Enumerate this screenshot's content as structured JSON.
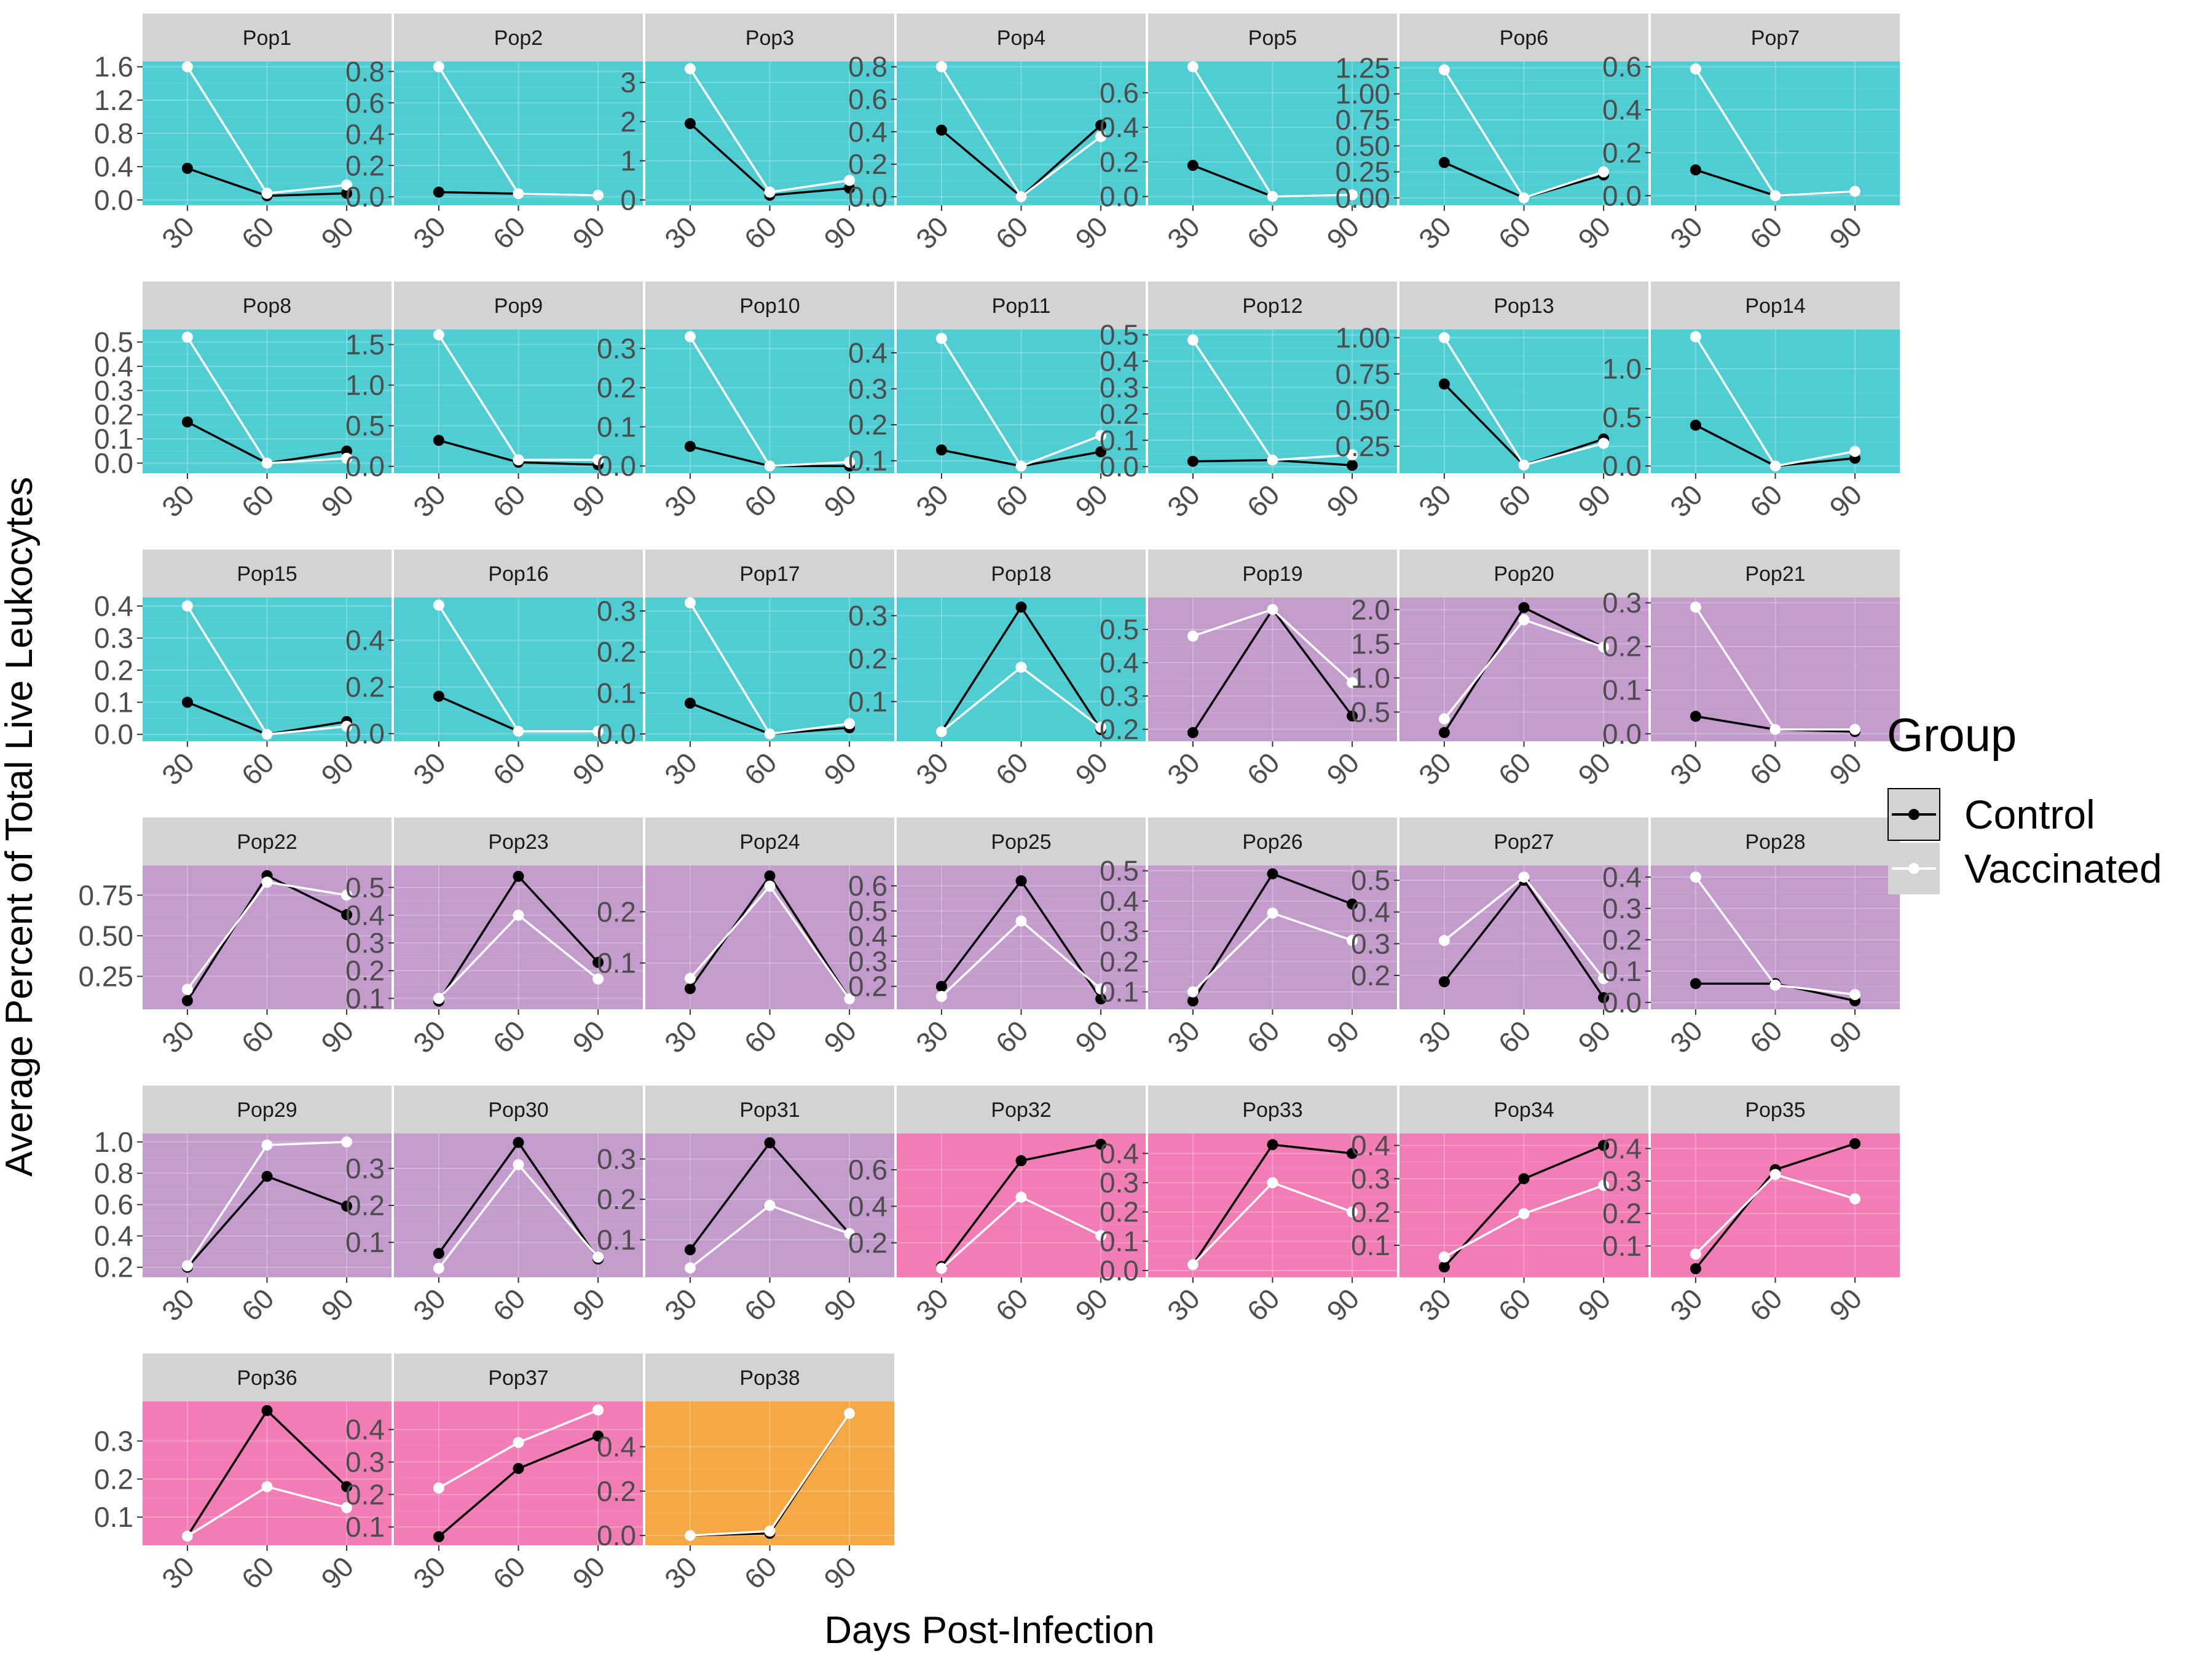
{
  "chart_data": {
    "type": "line",
    "ylabel": "Average Percent of Total Live Leukocytes",
    "xlabel": "Days Post-Infection",
    "x": [
      "30",
      "60",
      "90"
    ],
    "legend": {
      "title": "Group",
      "position": "right",
      "entries": [
        {
          "name": "Control",
          "color": "#000000"
        },
        {
          "name": "Vaccinated",
          "color": "#ffffff"
        }
      ]
    },
    "colors": {
      "cyan": "#4ecdd3",
      "purple": "#c39ccd",
      "pink": "#f27db4",
      "orange": "#f6a844",
      "strip": "#d3d3d3",
      "control": "#000000",
      "vaccinated": "#ffffff"
    },
    "panels": [
      {
        "name": "Pop1",
        "bg": "cyan",
        "ylim": [
          0,
          1.6
        ],
        "ticks": [
          "0.0",
          "0.4",
          "0.8",
          "1.2",
          "1.6"
        ],
        "tickv": [
          0,
          0.4,
          0.8,
          1.2,
          1.6
        ],
        "control": [
          0.38,
          0.05,
          0.08
        ],
        "vaccinated": [
          1.6,
          0.08,
          0.18
        ]
      },
      {
        "name": "Pop2",
        "bg": "cyan",
        "ylim": [
          -0.02,
          0.83
        ],
        "ticks": [
          "0.0",
          "0.2",
          "0.4",
          "0.6",
          "0.8"
        ],
        "tickv": [
          0,
          0.2,
          0.4,
          0.6,
          0.8
        ],
        "control": [
          0.03,
          0.02,
          0.01
        ],
        "vaccinated": [
          0.83,
          0.02,
          0.01
        ]
      },
      {
        "name": "Pop3",
        "bg": "cyan",
        "ylim": [
          0,
          3.4
        ],
        "ticks": [
          "0",
          "1",
          "2",
          "3"
        ],
        "tickv": [
          0,
          1,
          2,
          3
        ],
        "control": [
          1.95,
          0.12,
          0.3
        ],
        "vaccinated": [
          3.35,
          0.2,
          0.5
        ]
      },
      {
        "name": "Pop4",
        "bg": "cyan",
        "ylim": [
          -0.02,
          0.8
        ],
        "ticks": [
          "0.0",
          "0.2",
          "0.4",
          "0.6",
          "0.8"
        ],
        "tickv": [
          0,
          0.2,
          0.4,
          0.6,
          0.8
        ],
        "control": [
          0.41,
          0.0,
          0.44
        ],
        "vaccinated": [
          0.8,
          0.0,
          0.37
        ]
      },
      {
        "name": "Pop5",
        "bg": "cyan",
        "ylim": [
          -0.02,
          0.75
        ],
        "ticks": [
          "0.0",
          "0.2",
          "0.4",
          "0.6"
        ],
        "tickv": [
          0,
          0.2,
          0.4,
          0.6
        ],
        "control": [
          0.18,
          0.0,
          0.01
        ],
        "vaccinated": [
          0.75,
          0.0,
          0.01
        ]
      },
      {
        "name": "Pop6",
        "bg": "cyan",
        "ylim": [
          -0.02,
          1.26
        ],
        "ticks": [
          "0.00",
          "0.25",
          "0.50",
          "0.75",
          "1.00",
          "1.25"
        ],
        "tickv": [
          0,
          0.25,
          0.5,
          0.75,
          1.0,
          1.25
        ],
        "control": [
          0.34,
          0.0,
          0.22
        ],
        "vaccinated": [
          1.23,
          0.0,
          0.25
        ]
      },
      {
        "name": "Pop7",
        "bg": "cyan",
        "ylim": [
          -0.02,
          0.6
        ],
        "ticks": [
          "0.0",
          "0.2",
          "0.4",
          "0.6"
        ],
        "tickv": [
          0,
          0.2,
          0.4,
          0.6
        ],
        "control": [
          0.12,
          0.0,
          0.02
        ],
        "vaccinated": [
          0.59,
          0.0,
          0.02
        ]
      },
      {
        "name": "Pop8",
        "bg": "cyan",
        "ylim": [
          -0.02,
          0.53
        ],
        "ticks": [
          "0.0",
          "0.1",
          "0.2",
          "0.3",
          "0.4",
          "0.5"
        ],
        "tickv": [
          0,
          0.1,
          0.2,
          0.3,
          0.4,
          0.5
        ],
        "control": [
          0.17,
          0.0,
          0.05
        ],
        "vaccinated": [
          0.52,
          0.0,
          0.02
        ]
      },
      {
        "name": "Pop9",
        "bg": "cyan",
        "ylim": [
          -0.02,
          1.62
        ],
        "ticks": [
          "0.0",
          "0.5",
          "1.0",
          "1.5"
        ],
        "tickv": [
          0,
          0.5,
          1.0,
          1.5
        ],
        "control": [
          0.32,
          0.05,
          0.02
        ],
        "vaccinated": [
          1.62,
          0.08,
          0.08
        ]
      },
      {
        "name": "Pop10",
        "bg": "cyan",
        "ylim": [
          -0.005,
          0.335
        ],
        "ticks": [
          "0.0",
          "0.1",
          "0.2",
          "0.3"
        ],
        "tickv": [
          0,
          0.1,
          0.2,
          0.3
        ],
        "control": [
          0.05,
          0.0,
          0.0
        ],
        "vaccinated": [
          0.33,
          0.0,
          0.01
        ]
      },
      {
        "name": "Pop11",
        "bg": "cyan",
        "ylim": [
          0.08,
          0.45
        ],
        "ticks": [
          "0.1",
          "0.2",
          "0.3",
          "0.4"
        ],
        "tickv": [
          0.1,
          0.2,
          0.3,
          0.4
        ],
        "control": [
          0.13,
          0.085,
          0.125
        ],
        "vaccinated": [
          0.44,
          0.085,
          0.17
        ]
      },
      {
        "name": "Pop12",
        "bg": "cyan",
        "ylim": [
          -0.005,
          0.5
        ],
        "ticks": [
          "0.0",
          "0.1",
          "0.2",
          "0.3",
          "0.4",
          "0.5"
        ],
        "tickv": [
          0,
          0.1,
          0.2,
          0.3,
          0.4,
          0.5
        ],
        "control": [
          0.02,
          0.025,
          0.005
        ],
        "vaccinated": [
          0.48,
          0.025,
          0.045
        ]
      },
      {
        "name": "Pop13",
        "bg": "cyan",
        "ylim": [
          0.1,
          1.02
        ],
        "ticks": [
          "0.25",
          "0.50",
          "0.75",
          "1.00"
        ],
        "tickv": [
          0.25,
          0.5,
          0.75,
          1.0
        ],
        "control": [
          0.68,
          0.12,
          0.3
        ],
        "vaccinated": [
          1.0,
          0.12,
          0.27
        ]
      },
      {
        "name": "Pop14",
        "bg": "cyan",
        "ylim": [
          -0.02,
          1.35
        ],
        "ticks": [
          "0.0",
          "0.5",
          "1.0"
        ],
        "tickv": [
          0,
          0.5,
          1.0
        ],
        "control": [
          0.42,
          0.0,
          0.08
        ],
        "vaccinated": [
          1.33,
          0.0,
          0.15
        ]
      },
      {
        "name": "Pop15",
        "bg": "cyan",
        "ylim": [
          -0.005,
          0.41
        ],
        "ticks": [
          "0.0",
          "0.1",
          "0.2",
          "0.3",
          "0.4"
        ],
        "tickv": [
          0,
          0.1,
          0.2,
          0.3,
          0.4
        ],
        "control": [
          0.1,
          0.0,
          0.04
        ],
        "vaccinated": [
          0.4,
          0.0,
          0.025
        ]
      },
      {
        "name": "Pop16",
        "bg": "cyan",
        "ylim": [
          -0.01,
          0.56
        ],
        "ticks": [
          "0.0",
          "0.2",
          "0.4"
        ],
        "tickv": [
          0,
          0.2,
          0.4
        ],
        "control": [
          0.16,
          0.01,
          0.01
        ],
        "vaccinated": [
          0.55,
          0.01,
          0.01
        ]
      },
      {
        "name": "Pop17",
        "bg": "cyan",
        "ylim": [
          -0.005,
          0.32
        ],
        "ticks": [
          "0.0",
          "0.1",
          "0.2",
          "0.3"
        ],
        "tickv": [
          0,
          0.1,
          0.2,
          0.3
        ],
        "control": [
          0.075,
          0.0,
          0.015
        ],
        "vaccinated": [
          0.32,
          0.0,
          0.025
        ]
      },
      {
        "name": "Pop18",
        "bg": "cyan",
        "ylim": [
          0.02,
          0.33
        ],
        "ticks": [
          "0.1",
          "0.2",
          "0.3"
        ],
        "tickv": [
          0.1,
          0.2,
          0.3
        ],
        "control": [
          0.03,
          0.32,
          0.035
        ],
        "vaccinated": [
          0.03,
          0.18,
          0.04
        ]
      },
      {
        "name": "Pop19",
        "bg": "purple",
        "ylim": [
          0.18,
          0.58
        ],
        "ticks": [
          "0.2",
          "0.3",
          "0.4",
          "0.5"
        ],
        "tickv": [
          0.2,
          0.3,
          0.4,
          0.5
        ],
        "control": [
          0.19,
          0.56,
          0.24
        ],
        "vaccinated": [
          0.48,
          0.56,
          0.34
        ]
      },
      {
        "name": "Pop20",
        "bg": "purple",
        "ylim": [
          0.15,
          2.1
        ],
        "ticks": [
          "0.5",
          "1.0",
          "1.5",
          "2.0"
        ],
        "tickv": [
          0.5,
          1.0,
          1.5,
          2.0
        ],
        "control": [
          0.2,
          2.03,
          1.45
        ],
        "vaccinated": [
          0.4,
          1.85,
          1.45
        ]
      },
      {
        "name": "Pop21",
        "bg": "purple",
        "ylim": [
          -0.005,
          0.3
        ],
        "ticks": [
          "0.0",
          "0.1",
          "0.2",
          "0.3"
        ],
        "tickv": [
          0,
          0.1,
          0.2,
          0.3
        ],
        "control": [
          0.04,
          0.01,
          0.005
        ],
        "vaccinated": [
          0.29,
          0.01,
          0.01
        ]
      },
      {
        "name": "Pop22",
        "bg": "purple",
        "ylim": [
          0.08,
          0.9
        ],
        "ticks": [
          "0.25",
          "0.50",
          "0.75"
        ],
        "tickv": [
          0.25,
          0.5,
          0.75
        ],
        "control": [
          0.1,
          0.87,
          0.63
        ],
        "vaccinated": [
          0.17,
          0.83,
          0.75
        ]
      },
      {
        "name": "Pop23",
        "bg": "purple",
        "ylim": [
          0.08,
          0.56
        ],
        "ticks": [
          "0.1",
          "0.2",
          "0.3",
          "0.4",
          "0.5"
        ],
        "tickv": [
          0.1,
          0.2,
          0.3,
          0.4,
          0.5
        ],
        "control": [
          0.09,
          0.54,
          0.23
        ],
        "vaccinated": [
          0.1,
          0.4,
          0.17
        ]
      },
      {
        "name": "Pop24",
        "bg": "purple",
        "ylim": [
          0.02,
          0.28
        ],
        "ticks": [
          "0.1",
          "0.2"
        ],
        "tickv": [
          0.1,
          0.2
        ],
        "control": [
          0.05,
          0.27,
          0.03
        ],
        "vaccinated": [
          0.07,
          0.25,
          0.03
        ]
      },
      {
        "name": "Pop25",
        "bg": "purple",
        "ylim": [
          0.13,
          0.66
        ],
        "ticks": [
          "0.2",
          "0.3",
          "0.4",
          "0.5",
          "0.6"
        ],
        "tickv": [
          0.2,
          0.3,
          0.4,
          0.5,
          0.6
        ],
        "control": [
          0.2,
          0.62,
          0.15
        ],
        "vaccinated": [
          0.16,
          0.46,
          0.19
        ]
      },
      {
        "name": "Pop26",
        "bg": "purple",
        "ylim": [
          0.06,
          0.5
        ],
        "ticks": [
          "0.1",
          "0.2",
          "0.3",
          "0.4",
          "0.5"
        ],
        "tickv": [
          0.1,
          0.2,
          0.3,
          0.4,
          0.5
        ],
        "control": [
          0.07,
          0.49,
          0.39
        ],
        "vaccinated": [
          0.1,
          0.36,
          0.27
        ]
      },
      {
        "name": "Pop27",
        "bg": "purple",
        "ylim": [
          0.11,
          0.53
        ],
        "ticks": [
          "0.2",
          "0.3",
          "0.4",
          "0.5"
        ],
        "tickv": [
          0.2,
          0.3,
          0.4,
          0.5
        ],
        "control": [
          0.18,
          0.5,
          0.13
        ],
        "vaccinated": [
          0.31,
          0.51,
          0.19
        ]
      },
      {
        "name": "Pop28",
        "bg": "purple",
        "ylim": [
          -0.005,
          0.42
        ],
        "ticks": [
          "0.0",
          "0.1",
          "0.2",
          "0.3",
          "0.4"
        ],
        "tickv": [
          0,
          0.1,
          0.2,
          0.3,
          0.4
        ],
        "control": [
          0.06,
          0.06,
          0.005
        ],
        "vaccinated": [
          0.4,
          0.055,
          0.025
        ]
      },
      {
        "name": "Pop29",
        "bg": "purple",
        "ylim": [
          0.17,
          1.02
        ],
        "ticks": [
          "0.2",
          "0.4",
          "0.6",
          "0.8",
          "1.0"
        ],
        "tickv": [
          0.2,
          0.4,
          0.6,
          0.8,
          1.0
        ],
        "control": [
          0.2,
          0.78,
          0.59
        ],
        "vaccinated": [
          0.21,
          0.98,
          1.0
        ]
      },
      {
        "name": "Pop30",
        "bg": "purple",
        "ylim": [
          0.02,
          0.38
        ],
        "ticks": [
          "0.1",
          "0.2",
          "0.3"
        ],
        "tickv": [
          0.1,
          0.2,
          0.3
        ],
        "control": [
          0.07,
          0.37,
          0.055
        ],
        "vaccinated": [
          0.03,
          0.31,
          0.06
        ]
      },
      {
        "name": "Pop31",
        "bg": "purple",
        "ylim": [
          0.02,
          0.35
        ],
        "ticks": [
          "0.1",
          "0.2",
          "0.3"
        ],
        "tickv": [
          0.1,
          0.2,
          0.3
        ],
        "control": [
          0.075,
          0.34,
          0.115
        ],
        "vaccinated": [
          0.03,
          0.185,
          0.115
        ]
      },
      {
        "name": "Pop32",
        "bg": "pink",
        "ylim": [
          0.04,
          0.77
        ],
        "ticks": [
          "0.2",
          "0.4",
          "0.6"
        ],
        "tickv": [
          0.2,
          0.4,
          0.6
        ],
        "control": [
          0.07,
          0.65,
          0.74
        ],
        "vaccinated": [
          0.06,
          0.45,
          0.24
        ]
      },
      {
        "name": "Pop33",
        "bg": "pink",
        "ylim": [
          -0.005,
          0.45
        ],
        "ticks": [
          "0.0",
          "0.1",
          "0.2",
          "0.3",
          "0.4"
        ],
        "tickv": [
          0,
          0.1,
          0.2,
          0.3,
          0.4
        ],
        "control": [
          0.02,
          0.43,
          0.4
        ],
        "vaccinated": [
          0.02,
          0.3,
          0.2
        ]
      },
      {
        "name": "Pop34",
        "bg": "pink",
        "ylim": [
          0.02,
          0.42
        ],
        "ticks": [
          "0.1",
          "0.2",
          "0.3",
          "0.4"
        ],
        "tickv": [
          0.1,
          0.2,
          0.3,
          0.4
        ],
        "control": [
          0.035,
          0.3,
          0.4
        ],
        "vaccinated": [
          0.065,
          0.195,
          0.28
        ]
      },
      {
        "name": "Pop35",
        "bg": "pink",
        "ylim": [
          0.02,
          0.43
        ],
        "ticks": [
          "0.1",
          "0.2",
          "0.3",
          "0.4"
        ],
        "tickv": [
          0.1,
          0.2,
          0.3,
          0.4
        ],
        "control": [
          0.03,
          0.335,
          0.415
        ],
        "vaccinated": [
          0.075,
          0.32,
          0.245
        ]
      },
      {
        "name": "Pop36",
        "bg": "pink",
        "ylim": [
          0.04,
          0.39
        ],
        "ticks": [
          "0.1",
          "0.2",
          "0.3"
        ],
        "tickv": [
          0.1,
          0.2,
          0.3
        ],
        "control": [
          0.05,
          0.38,
          0.18
        ],
        "vaccinated": [
          0.05,
          0.18,
          0.125
        ]
      },
      {
        "name": "Pop37",
        "bg": "pink",
        "ylim": [
          0.06,
          0.47
        ],
        "ticks": [
          "0.1",
          "0.2",
          "0.3",
          "0.4"
        ],
        "tickv": [
          0.1,
          0.2,
          0.3,
          0.4
        ],
        "control": [
          0.07,
          0.28,
          0.38
        ],
        "vaccinated": [
          0.22,
          0.36,
          0.46
        ]
      },
      {
        "name": "Pop38",
        "bg": "orange",
        "ylim": [
          -0.02,
          0.58
        ],
        "ticks": [
          "0.0",
          "0.2",
          "0.4"
        ],
        "tickv": [
          0,
          0.2,
          0.4
        ],
        "control": [
          0.0,
          0.01,
          0.55
        ],
        "vaccinated": [
          0.0,
          0.02,
          0.55
        ]
      }
    ]
  }
}
